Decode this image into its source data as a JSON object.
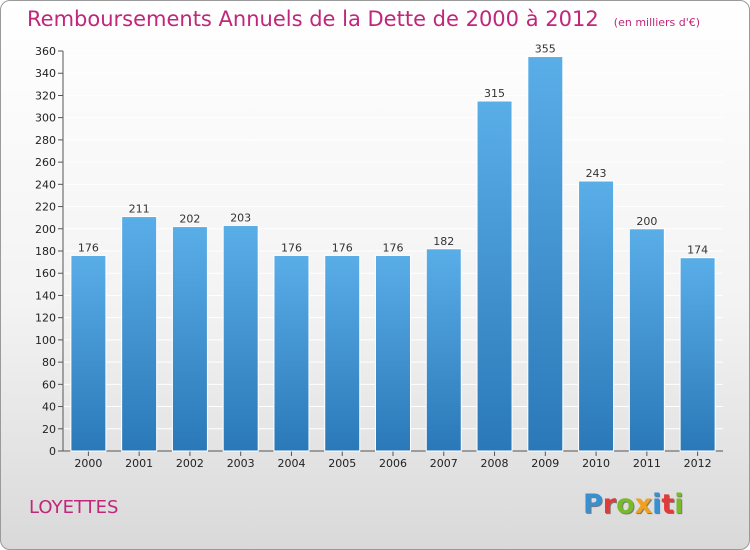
{
  "title": "Remboursements Annuels de la Dette de 2000 à 2012",
  "unit_note": "(en milliers d'€)",
  "location": "LOYETTES",
  "logo": {
    "text": "Proxiti",
    "colors": [
      "#3a8fd0",
      "#e03a3a",
      "#7ab82e",
      "#f0a020",
      "#3a8fd0",
      "#e03a3a",
      "#7ab82e"
    ]
  },
  "colors": {
    "bar_top": "#5aaee8",
    "bar_bottom": "#2a78b8",
    "title": "#c0267a"
  },
  "chart_data": {
    "type": "bar",
    "categories": [
      "2000",
      "2001",
      "2002",
      "2003",
      "2004",
      "2005",
      "2006",
      "2007",
      "2008",
      "2009",
      "2010",
      "2011",
      "2012"
    ],
    "values": [
      176,
      211,
      202,
      203,
      176,
      176,
      176,
      182,
      315,
      355,
      243,
      200,
      174
    ],
    "ylim": [
      0,
      360
    ],
    "yticks": [
      0,
      20,
      40,
      60,
      80,
      100,
      120,
      140,
      160,
      180,
      200,
      220,
      240,
      260,
      280,
      300,
      320,
      340,
      360
    ],
    "grid": true,
    "xlabel": "",
    "ylabel": ""
  }
}
